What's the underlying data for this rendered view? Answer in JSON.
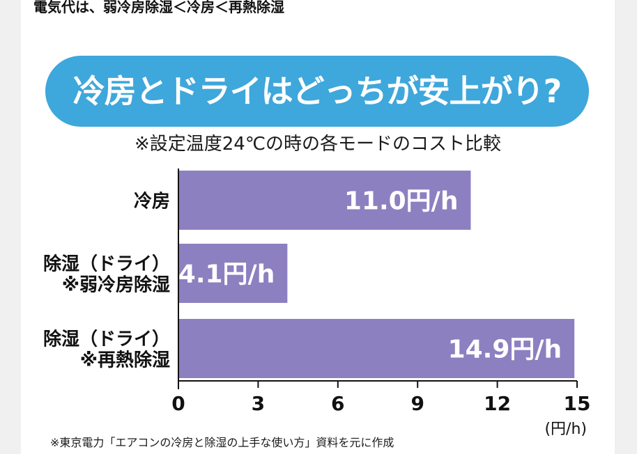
{
  "headline": "電気代は、弱冷房除湿＜冷房＜再熱除湿",
  "banner": {
    "title": "冷房とドライはどっちが安上がり?"
  },
  "subtitle": "※設定温度24℃の時の各モードのコスト比較",
  "source_note": "※東京電力「エアコンの冷房と除湿の上手な使い方」資料を元に作成",
  "colors": {
    "banner": "#3ea7db",
    "bar": "#8d80c0",
    "bar_label": "#ffffff",
    "axis": "#111111"
  },
  "chart_data": {
    "type": "bar",
    "orientation": "horizontal",
    "title": "冷房とドライはどっちが安上がり?",
    "subtitle": "※設定温度24℃の時の各モードのコスト比較",
    "categories": [
      [
        "冷房"
      ],
      [
        "除湿（ドライ）",
        "※弱冷房除湿"
      ],
      [
        "除湿（ドライ）",
        "※再熱除湿"
      ]
    ],
    "values": [
      11.0,
      4.1,
      14.9
    ],
    "data_labels": [
      "11.0円/h",
      "4.1円/h",
      "14.9円/h"
    ],
    "xlim": [
      0,
      15
    ],
    "xticks": [
      0,
      3,
      6,
      9,
      12,
      15
    ],
    "xunit": "(円/h)",
    "grid": false,
    "legend": "none"
  }
}
